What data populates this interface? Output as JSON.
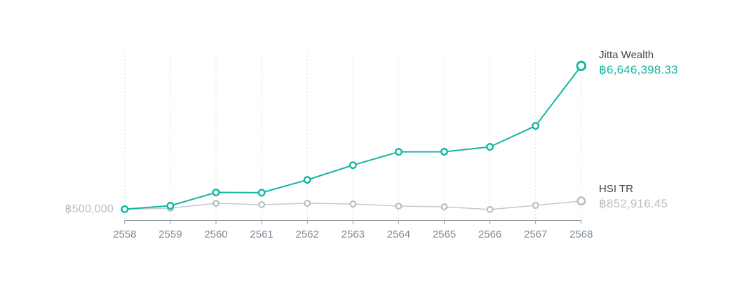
{
  "chart_data": {
    "type": "line",
    "title": "",
    "xlabel": "",
    "ylabel": "",
    "categories": [
      "2558",
      "2559",
      "2560",
      "2561",
      "2562",
      "2563",
      "2564",
      "2565",
      "2566",
      "2567",
      "2568"
    ],
    "baseline_label": "฿500,000",
    "baseline_value": 500000,
    "grid": "vertical-dashed",
    "legend_position": "right-of-last-point",
    "series": [
      {
        "name": "Jitta Wealth",
        "final_value_label": "฿6,646,398.33",
        "final_value": 6646398.33,
        "color": "#15b5a3",
        "values": [
          500000,
          650000,
          1220000,
          1210000,
          1760000,
          2390000,
          2960000,
          2965000,
          3175000,
          4075000,
          6646398.33
        ]
      },
      {
        "name": "HSI TR",
        "final_value_label": "฿852,916.45",
        "final_value": 852916.45,
        "color": "#c5cacd",
        "marker_color": "#b6bcc2",
        "values": [
          500000,
          545000,
          755000,
          695000,
          755000,
          725000,
          635000,
          605000,
          490000,
          665000,
          852916.45
        ]
      }
    ]
  },
  "colors": {
    "background": "#ffffff",
    "grid_line": "#dcdfe2",
    "axis_line": "#8e969d",
    "tick_label": "#7e8a94",
    "muted_label": "#b7bec5",
    "series_name_label": "#3f474e",
    "accent_teal": "#15b5a3"
  }
}
